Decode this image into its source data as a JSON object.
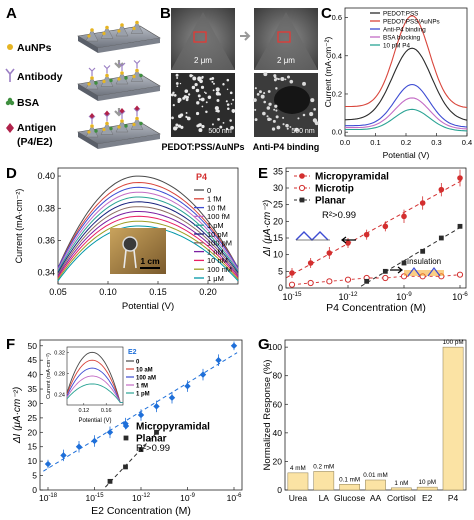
{
  "panels": {
    "A": {
      "letter": "A",
      "labels": [
        "AuNPs",
        "Antibody",
        "BSA",
        "Antigen",
        "(P4/E2)"
      ],
      "colors": {
        "aunp": "#e6b422",
        "antibody": "#9b7fc4",
        "bsa": "#3f8f3f",
        "antigen": "#b0224a",
        "substrate": "#8a8f99"
      }
    },
    "B": {
      "letter": "B",
      "scale_top_left": "2 μm",
      "scale_top_right": "2 μm",
      "scale_bottom_left": "500 nm",
      "scale_bottom_right": "500 nm",
      "caption_left": "PEDOT:PSS/AuNPs",
      "caption_right": "Anti-P4 binding"
    },
    "C": {
      "letter": "C",
      "xlabel": "Potential (V)",
      "ylabel": "Current (mA·cm⁻²)",
      "xticks": [
        "0.0",
        "0.1",
        "0.2",
        "0.3",
        "0.4"
      ],
      "yticks": [
        "0.0",
        "0.2",
        "0.4",
        "0.6"
      ],
      "legend": [
        "PEDOT:PSS",
        "PEDOT:PSS/AuNPs",
        "Anti-P4 binding",
        "BSA blocking",
        "10 pM P4"
      ]
    },
    "D": {
      "letter": "D",
      "xlabel": "Potential (V)",
      "ylabel": "Current (mA·cm⁻²)",
      "xticks": [
        "0.05",
        "0.10",
        "0.15",
        "0.20"
      ],
      "yticks": [
        "0.34",
        "0.36",
        "0.38",
        "0.40"
      ],
      "legend_title": "P4",
      "legend": [
        "0",
        "1 fM",
        "10 fM",
        "100 fM",
        "1 pM",
        "10 pM",
        "100 pM",
        "1 nM",
        "10 nM",
        "100 nM",
        "1 μM"
      ],
      "inset_scale": "1 cm"
    },
    "E": {
      "letter": "E",
      "xlabel": "P4 Concentration (M)",
      "ylabel": "ΔI (μA·cm⁻²)",
      "yticks": [
        "0",
        "5",
        "10",
        "15",
        "20",
        "25",
        "30",
        "35"
      ],
      "xtick_bases": [
        "10",
        "10",
        "10",
        "10"
      ],
      "xtick_exps": [
        "-15",
        "-12",
        "-9",
        "-6"
      ],
      "legend": [
        "Micropyramidal",
        "Microtip",
        "Planar"
      ],
      "r2": "R²>0.99",
      "insulation_label": "Insulation"
    },
    "F": {
      "letter": "F",
      "xlabel": "E2 Concentration (M)",
      "ylabel": "ΔI (μA·cm⁻²)",
      "yticks": [
        "0",
        "5",
        "10",
        "15",
        "20",
        "25",
        "30",
        "35",
        "40",
        "45",
        "50"
      ],
      "xtick_bases": [
        "10",
        "10",
        "10",
        "10",
        "10"
      ],
      "xtick_exps": [
        "-18",
        "-15",
        "-12",
        "-9",
        "-6"
      ],
      "legend": [
        "Micropyramidal",
        "Planar"
      ],
      "r2": "R²>0.99",
      "inset": {
        "ylabel": "Current (mA·cm⁻²)",
        "xlabel": "Potential (V)",
        "yticks": [
          "0.24",
          "0.28",
          "0.32"
        ],
        "xticks": [
          "0.12",
          "0.16"
        ],
        "legend_title": "E2",
        "legend": [
          "0",
          "10 aM",
          "100 aM",
          "1 fM",
          "1 pM"
        ]
      }
    },
    "G": {
      "letter": "G",
      "ylabel": "Normalized Response (%)",
      "yticks": [
        "0",
        "20",
        "40",
        "60",
        "80",
        "100"
      ]
    }
  },
  "chart_data": [
    {
      "panel": "C",
      "type": "line",
      "xlabel": "Potential (V)",
      "ylabel": "Current (mA·cm⁻²)",
      "xlim": [
        0.0,
        0.4
      ],
      "ylim": [
        -0.02,
        0.65
      ],
      "series": [
        {
          "name": "PEDOT:PSS",
          "color": "#2b2b2b",
          "peak_x": 0.22,
          "peak_y": 0.44,
          "base_y": 0.06,
          "width": 0.09
        },
        {
          "name": "PEDOT:PSS/AuNPs",
          "color": "#d9453b",
          "peak_x": 0.22,
          "peak_y": 0.61,
          "base_y": 0.13,
          "width": 0.08
        },
        {
          "name": "Anti-P4 binding",
          "color": "#3d4cd3",
          "peak_x": 0.22,
          "peak_y": 0.25,
          "base_y": 0.03,
          "width": 0.08
        },
        {
          "name": "BSA blocking",
          "color": "#c36cc5",
          "peak_x": 0.22,
          "peak_y": 0.18,
          "base_y": 0.02,
          "width": 0.08
        },
        {
          "name": "10 pM P4",
          "color": "#2aa394",
          "peak_x": 0.22,
          "peak_y": 0.12,
          "base_y": 0.01,
          "width": 0.08
        }
      ]
    },
    {
      "panel": "D",
      "type": "line",
      "xlabel": "Potential (V)",
      "ylabel": "Current (mA·cm⁻²)",
      "xlim": [
        0.05,
        0.23
      ],
      "ylim": [
        0.333,
        0.405
      ],
      "peak_x": 0.13,
      "series": [
        {
          "name": "0",
          "color": "#4a4a4a",
          "peak_y": 0.4,
          "end_y": 0.343
        },
        {
          "name": "1 fM",
          "color": "#d9453b",
          "peak_y": 0.396,
          "end_y": 0.343
        },
        {
          "name": "10 fM",
          "color": "#3d4cd3",
          "peak_y": 0.393,
          "end_y": 0.343
        },
        {
          "name": "100 fM",
          "color": "#c36cc5",
          "peak_y": 0.39,
          "end_y": 0.342
        },
        {
          "name": "1 pM",
          "color": "#2aa394",
          "peak_y": 0.387,
          "end_y": 0.341
        },
        {
          "name": "10 pM",
          "color": "#1a237e",
          "peak_y": 0.384,
          "end_y": 0.34
        },
        {
          "name": "100 pM",
          "color": "#8d6e63",
          "peak_y": 0.381,
          "end_y": 0.339
        },
        {
          "name": "1 nM",
          "color": "#7b1fa2",
          "peak_y": 0.378,
          "end_y": 0.338
        },
        {
          "name": "10 nM",
          "color": "#e91e63",
          "peak_y": 0.375,
          "end_y": 0.337
        },
        {
          "name": "100 nM",
          "color": "#9e9d24",
          "peak_y": 0.372,
          "end_y": 0.336
        },
        {
          "name": "1 μM",
          "color": "#0097a7",
          "peak_y": 0.369,
          "end_y": 0.335
        }
      ]
    },
    {
      "panel": "E",
      "type": "scatter",
      "xlabel": "P4 Concentration (M)",
      "ylabel": "ΔI (μA·cm⁻²)",
      "x_scale": "log",
      "xlim_log10": [
        -15,
        -6
      ],
      "ylim": [
        0,
        36
      ],
      "series": [
        {
          "name": "Micropyramidal",
          "color": "#d32f2f",
          "marker": "filled-circle",
          "log10_x": [
            -15,
            -14,
            -13,
            -12,
            -11,
            -10,
            -9,
            -8,
            -7,
            -6
          ],
          "y": [
            4.5,
            7.5,
            10.5,
            13.5,
            16.0,
            18.5,
            21.5,
            25.5,
            29.5,
            33.0
          ],
          "err": [
            1.5,
            1.5,
            1.8,
            1.5,
            1.5,
            1.5,
            2.0,
            2.0,
            2.0,
            2.5
          ]
        },
        {
          "name": "Microtip",
          "color": "#d32f2f",
          "marker": "open-circle",
          "log10_x": [
            -15,
            -14,
            -13,
            -12,
            -11,
            -10,
            -9,
            -8,
            -7,
            -6
          ],
          "y": [
            1.0,
            1.5,
            2.0,
            2.5,
            3.0,
            3.0,
            3.5,
            3.5,
            3.5,
            4.0
          ],
          "err": [
            0.5,
            0.5,
            0.5,
            0.5,
            0.5,
            0.5,
            0.5,
            0.5,
            0.5,
            0.5
          ]
        },
        {
          "name": "Planar",
          "color": "#2b2b2b",
          "marker": "filled-square",
          "log10_x": [
            -11,
            -10,
            -9,
            -8,
            -7,
            -6
          ],
          "y": [
            2.0,
            5.0,
            7.5,
            11.0,
            15.0,
            18.5
          ],
          "err": [
            0.4,
            0.4,
            0.4,
            0.4,
            0.4,
            0.4
          ]
        }
      ]
    },
    {
      "panel": "F",
      "type": "scatter",
      "xlabel": "E2 Concentration (M)",
      "ylabel": "ΔI (μA·cm⁻²)",
      "x_scale": "log",
      "xlim_log10": [
        -18,
        -6
      ],
      "ylim": [
        0,
        52
      ],
      "series": [
        {
          "name": "Micropyramidal",
          "color": "#1e6fd9",
          "marker": "filled-diamond",
          "log10_x": [
            -18,
            -17,
            -16,
            -15,
            -14,
            -13,
            -12,
            -11,
            -10,
            -9,
            -8,
            -7,
            -6
          ],
          "y": [
            9,
            12,
            15,
            17,
            20,
            23,
            26,
            29,
            32,
            36,
            40,
            45,
            50
          ],
          "err": [
            1.5,
            2,
            2,
            2,
            2,
            2,
            2,
            2,
            2,
            2,
            2,
            2,
            1.5
          ]
        },
        {
          "name": "Planar",
          "color": "#2b2b2b",
          "marker": "filled-square",
          "log10_x": [
            -14,
            -13,
            -12,
            -11
          ],
          "y": [
            3,
            8,
            14,
            20
          ],
          "err": [
            0.5,
            0.5,
            0.5,
            0.5
          ]
        }
      ]
    },
    {
      "panel": "F-inset",
      "type": "line",
      "xlabel": "Potential (V)",
      "ylabel": "Current (mA·cm⁻²)",
      "xlim": [
        0.09,
        0.19
      ],
      "ylim": [
        0.22,
        0.33
      ],
      "series": [
        {
          "name": "0",
          "color": "#4a4a4a",
          "peak_y": 0.32
        },
        {
          "name": "10 aM",
          "color": "#d9453b",
          "peak_y": 0.305
        },
        {
          "name": "100 aM",
          "color": "#3d4cd3",
          "peak_y": 0.29
        },
        {
          "name": "1 fM",
          "color": "#c36cc5",
          "peak_y": 0.275
        },
        {
          "name": "1 pM",
          "color": "#2aa394",
          "peak_y": 0.26
        }
      ]
    },
    {
      "panel": "G",
      "type": "bar",
      "ylabel": "Normalized Response (%)",
      "ylim": [
        0,
        105
      ],
      "categories": [
        "Urea",
        "LA",
        "Glucose",
        "AA",
        "Cortisol",
        "E2",
        "P4"
      ],
      "values": [
        12,
        13,
        4,
        7,
        1.5,
        2,
        100
      ],
      "bar_labels": [
        "4 mM",
        "0.2 mM",
        "0.1 mM",
        "0.01 mM",
        "1 nM",
        "10 pM",
        "100 pM"
      ],
      "color": "#fbe3a4"
    }
  ]
}
